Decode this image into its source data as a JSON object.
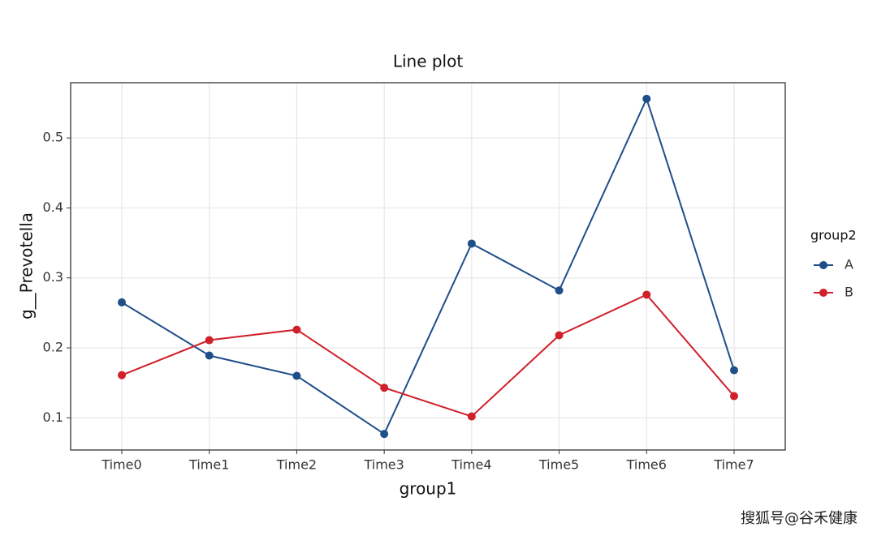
{
  "chart_data": {
    "type": "line",
    "title": "Line plot",
    "x_label": "group1",
    "y_label": "g__Prevotella",
    "categories": [
      "Time0",
      "Time1",
      "Time2",
      "Time3",
      "Time4",
      "Time5",
      "Time6",
      "Time7"
    ],
    "series": [
      {
        "name": "A",
        "color": "#1f4e89",
        "values": [
          0.265,
          0.189,
          0.16,
          0.077,
          0.349,
          0.282,
          0.556,
          0.168
        ]
      },
      {
        "name": "B",
        "color": "#d0202a",
        "values": [
          0.161,
          0.211,
          0.226,
          0.143,
          0.102,
          0.218,
          0.276,
          0.131
        ]
      }
    ],
    "ylim": [
      0.054,
      0.579
    ],
    "yticks": [
      0.1,
      0.2,
      0.3,
      0.4,
      0.5
    ],
    "grid": true,
    "legend_title": "group2",
    "legend_position": "right",
    "watermark": "搜狐号@谷禾健康"
  }
}
